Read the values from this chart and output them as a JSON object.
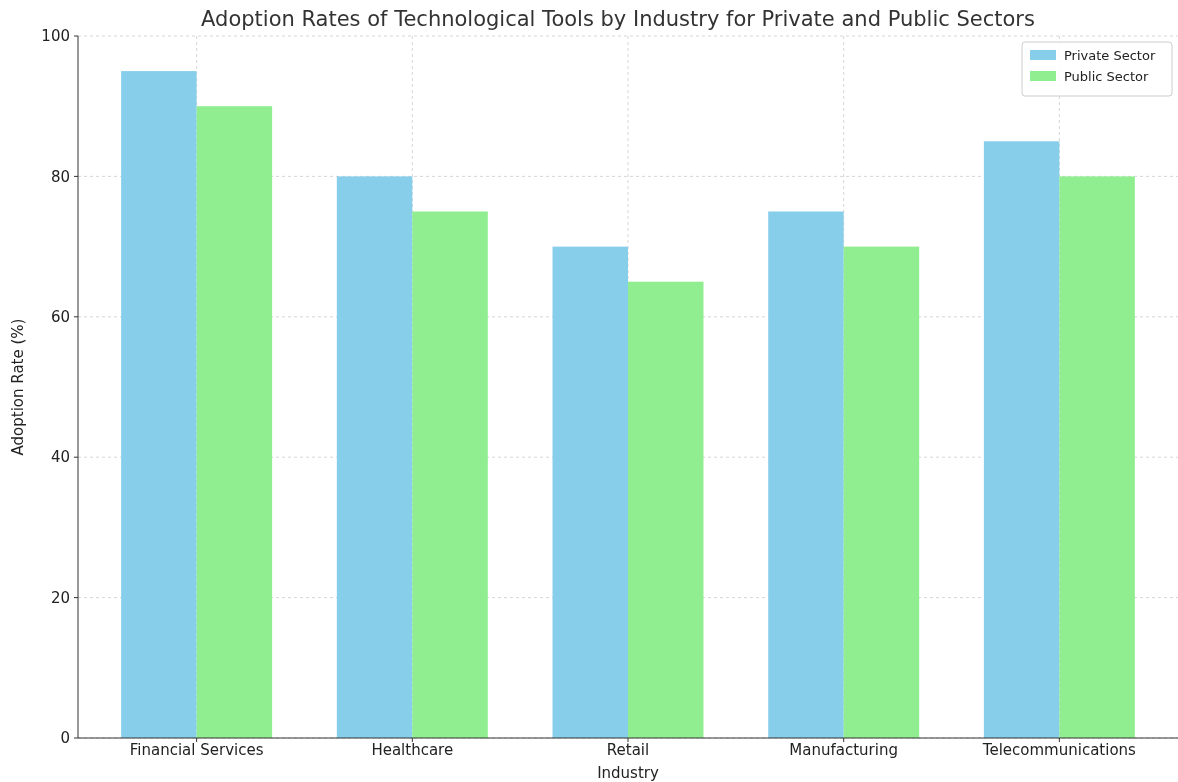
{
  "chart_data": {
    "type": "bar",
    "title": "Adoption Rates of Technological Tools by Industry for Private and Public Sectors",
    "xlabel": "Industry",
    "ylabel": "Adoption Rate (%)",
    "categories": [
      "Financial Services",
      "Healthcare",
      "Retail",
      "Manufacturing",
      "Telecommunications"
    ],
    "series": [
      {
        "name": "Private Sector",
        "color": "#87ceeb",
        "values": [
          95,
          80,
          70,
          75,
          85
        ]
      },
      {
        "name": "Public Sector",
        "color": "#90ee90",
        "values": [
          90,
          75,
          65,
          70,
          80
        ]
      }
    ],
    "ylim": [
      0,
      100
    ],
    "yticks": [
      0,
      20,
      40,
      60,
      80,
      100
    ],
    "grid": true,
    "legend": "top right"
  }
}
